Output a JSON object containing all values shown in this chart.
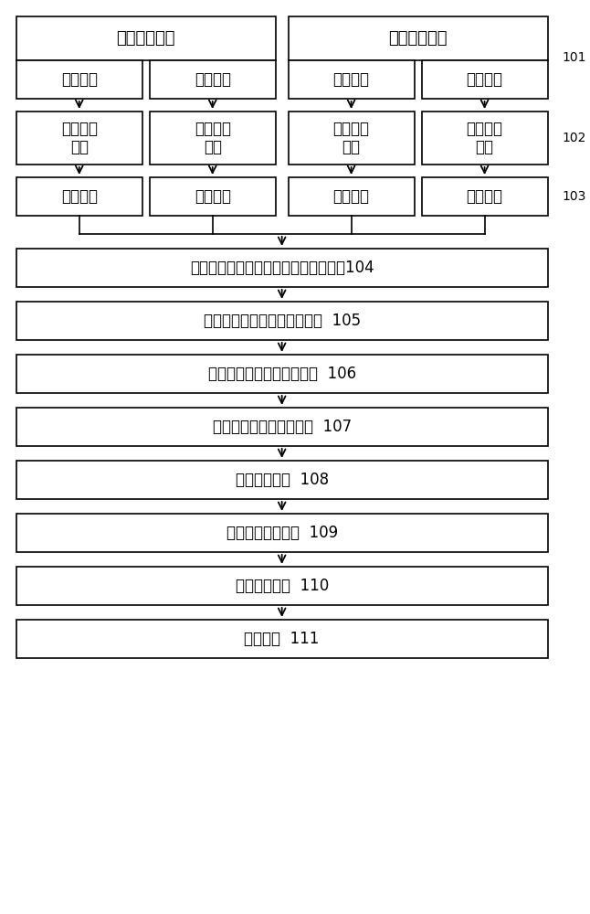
{
  "bg_color": "#ffffff",
  "box_color": "#ffffff",
  "box_edge_color": "#000000",
  "text_color": "#000000",
  "arrow_color": "#000000",
  "font_size": 13,
  "top_group1_label": "第一电压发射",
  "top_group2_label": "第二电压发射",
  "col1_pulse": "正向脉冲",
  "col2_pulse": "反向脉冲",
  "col3_pulse": "正向脉冲",
  "col4_pulse": "反向脉冲",
  "rf_signal": "回波射频\n信号",
  "col1_envelope": "基波包络",
  "col2_envelope": "谐波包络",
  "col3_envelope": "基波包络",
  "col4_envelope": "谐波包络",
  "step104": "基于归一化幅值比构建非线性系数函数104",
  "step105": "估算出非线性系数函数初始值  105",
  "step106": "迭代法求解非线性系数函数  106",
  "step107": "基于非线性系数生成图像  107",
  "step108": "进行中值滤波  108",
  "step109": "进行数字扫描变换  109",
  "step110": "进行彩色编码  110",
  "step111": "输出图像  111",
  "label101": "101",
  "label102": "102",
  "label103": "103"
}
